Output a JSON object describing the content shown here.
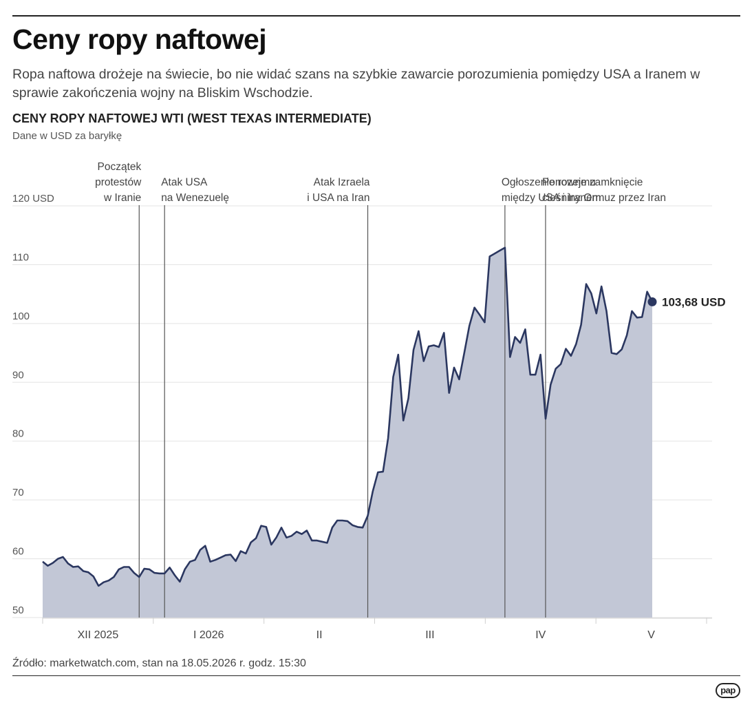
{
  "header": {
    "title": "Ceny ropy naftowej",
    "lead": "Ropa naftowa drożeje na świecie, bo nie widać szans na szybkie zawarcie porozumienia pomiędzy USA a Iranem w sprawie zakończenia wojny na Bliskim Wschodzie."
  },
  "footer": {
    "source": "Źródło: marketwatch.com, stan na 18.05.2026 r. godz. 15:30",
    "logo": "pap"
  },
  "colors": {
    "line": "#2b3760",
    "fill": "#c2c7d6",
    "grid": "#e3e3e3",
    "event_line": "#555555"
  },
  "chart_data": {
    "type": "area",
    "title": "CENY ROPY NAFTOWEJ WTI (WEST TEXAS INTERMEDIATE)",
    "subtitle": "Dane w USD za baryłkę",
    "ylim": [
      50,
      120
    ],
    "yticks": [
      {
        "value": 120,
        "label": "120 USD"
      },
      {
        "value": 110,
        "label": "110"
      },
      {
        "value": 100,
        "label": "100"
      },
      {
        "value": 90,
        "label": "90"
      },
      {
        "value": 80,
        "label": "80"
      },
      {
        "value": 70,
        "label": "70"
      },
      {
        "value": 60,
        "label": "60"
      },
      {
        "value": 50,
        "label": "50"
      }
    ],
    "months": [
      "XII 2025",
      "I 2026",
      "II",
      "III",
      "IV",
      "V"
    ],
    "values": [
      59.5,
      58.8,
      59.3,
      60.0,
      60.3,
      59.2,
      58.6,
      58.7,
      57.9,
      57.7,
      57.0,
      55.4,
      56.0,
      56.3,
      56.9,
      58.2,
      58.6,
      58.6,
      57.6,
      56.9,
      58.3,
      58.2,
      57.6,
      57.5,
      57.5,
      58.5,
      57.2,
      56.1,
      58.2,
      59.5,
      59.8,
      61.5,
      62.2,
      59.5,
      59.8,
      60.2,
      60.6,
      60.7,
      59.6,
      61.3,
      60.9,
      62.8,
      63.5,
      65.6,
      65.4,
      62.4,
      63.6,
      65.3,
      63.6,
      63.9,
      64.6,
      64.2,
      64.8,
      63.1,
      63.1,
      62.9,
      62.7,
      65.3,
      66.5,
      66.5,
      66.4,
      65.7,
      65.4,
      65.3,
      67.3,
      71.5,
      74.7,
      74.8,
      80.5,
      90.9,
      94.7,
      83.5,
      87.3,
      95.5,
      98.7,
      93.6,
      96.1,
      96.3,
      96.0,
      98.4,
      88.2,
      92.5,
      90.5,
      95.0,
      99.6,
      102.7,
      101.5,
      100.2,
      111.4,
      111.9,
      112.4,
      112.9,
      94.3,
      97.7,
      96.7,
      99.0,
      91.3,
      91.3,
      94.7,
      83.8,
      89.6,
      92.3,
      93.1,
      95.7,
      94.5,
      96.5,
      99.8,
      106.7,
      105.1,
      101.7,
      106.3,
      102.1,
      95.0,
      94.8,
      95.6,
      98.0,
      102.1,
      101.0,
      101.1,
      105.4,
      103.68
    ],
    "last_value_label": "103,68 USD",
    "events": [
      {
        "index": 19,
        "label": [
          "Początek",
          "protestów",
          "w Iranie"
        ]
      },
      {
        "index": 24,
        "label": [
          "Atak USA",
          "na Wenezuelę"
        ]
      },
      {
        "index": 64,
        "label": [
          "Atak Izraela",
          "i USA na Iran"
        ]
      },
      {
        "index": 91,
        "label": [
          "Ogłoszenie rozejmu",
          "między USA i Iranem"
        ]
      },
      {
        "index": 99,
        "label": [
          "Ponowne zamknięcie",
          "cieśniny Ormuz przez Iran"
        ]
      }
    ],
    "grid": true,
    "legend": "none"
  }
}
